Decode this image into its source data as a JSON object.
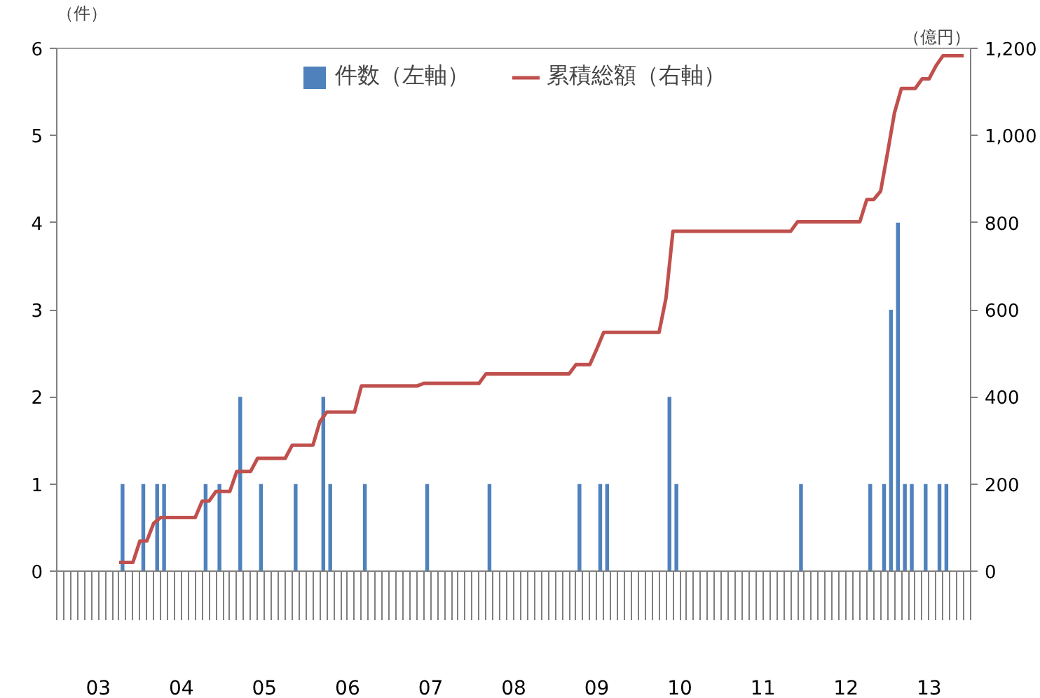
{
  "chart_data": {
    "type": "bar",
    "ylabel": "（件）",
    "y2label": "（億円）",
    "x": [
      "2003-01",
      "2003-02",
      "2003-03",
      "2003-04",
      "2003-05",
      "2003-06",
      "2003-07",
      "2003-08",
      "2003-09",
      "2003-10",
      "2003-11",
      "2003-12",
      "2004-01",
      "2004-02",
      "2004-03",
      "2004-04",
      "2004-05",
      "2004-06",
      "2004-07",
      "2004-08",
      "2004-09",
      "2004-10",
      "2004-11",
      "2004-12",
      "2005-01",
      "2005-02",
      "2005-03",
      "2005-04",
      "2005-05",
      "2005-06",
      "2005-07",
      "2005-08",
      "2005-09",
      "2005-10",
      "2005-11",
      "2005-12",
      "2006-01",
      "2006-02",
      "2006-03",
      "2006-04",
      "2006-05",
      "2006-06",
      "2006-07",
      "2006-08",
      "2006-09",
      "2006-10",
      "2006-11",
      "2006-12",
      "2007-01",
      "2007-02",
      "2007-03",
      "2007-04",
      "2007-05",
      "2007-06",
      "2007-07",
      "2007-08",
      "2007-09",
      "2007-10",
      "2007-11",
      "2007-12",
      "2008-01",
      "2008-02",
      "2008-03",
      "2008-04",
      "2008-05",
      "2008-06",
      "2008-07",
      "2008-08",
      "2008-09",
      "2008-10",
      "2008-11",
      "2008-12",
      "2009-01",
      "2009-02",
      "2009-03",
      "2009-04",
      "2009-05",
      "2009-06",
      "2009-07",
      "2009-08",
      "2009-09",
      "2009-10",
      "2009-11",
      "2009-12",
      "2010-01",
      "2010-02",
      "2010-03",
      "2010-04",
      "2010-05",
      "2010-06",
      "2010-07",
      "2010-08",
      "2010-09",
      "2010-10",
      "2010-11",
      "2010-12",
      "2011-01",
      "2011-02",
      "2011-03",
      "2011-04",
      "2011-05",
      "2011-06",
      "2011-07",
      "2011-08",
      "2011-09",
      "2011-10",
      "2011-11",
      "2011-12",
      "2012-01",
      "2012-02",
      "2012-03",
      "2012-04",
      "2012-05",
      "2012-06",
      "2012-07",
      "2012-08",
      "2012-09",
      "2012-10",
      "2012-11",
      "2012-12",
      "2013-01",
      "2013-02",
      "2013-03",
      "2013-04",
      "2013-05",
      "2013-06",
      "2013-07",
      "2013-08",
      "2013-09",
      "2013-10",
      "2013-11",
      "2013-12"
    ],
    "series": [
      {
        "name": "件数（左軸）",
        "color": "#4f81bd",
        "values": [
          0,
          0,
          0,
          0,
          0,
          0,
          0,
          0,
          0,
          1,
          0,
          0,
          1,
          0,
          1,
          1,
          0,
          0,
          0,
          0,
          0,
          1,
          0,
          1,
          0,
          0,
          2,
          0,
          0,
          1,
          0,
          0,
          0,
          0,
          1,
          0,
          0,
          0,
          2,
          1,
          0,
          0,
          0,
          0,
          1,
          0,
          0,
          0,
          0,
          0,
          0,
          0,
          0,
          1,
          0,
          0,
          0,
          0,
          0,
          0,
          0,
          0,
          1,
          0,
          0,
          0,
          0,
          0,
          0,
          0,
          0,
          0,
          0,
          0,
          0,
          1,
          0,
          0,
          1,
          1,
          0,
          0,
          0,
          0,
          0,
          0,
          0,
          0,
          2,
          1,
          0,
          0,
          0,
          0,
          0,
          0,
          0,
          0,
          0,
          0,
          0,
          0,
          0,
          0,
          0,
          0,
          0,
          1,
          0,
          0,
          0,
          0,
          0,
          0,
          0,
          0,
          0,
          1,
          0,
          1,
          3,
          4,
          1,
          1,
          0,
          1,
          0,
          1,
          1,
          0,
          0,
          0
        ]
      },
      {
        "name": "累積総額（右軸）",
        "type": "line",
        "axis": "y2",
        "color": "#c0504d",
        "values": [
          null,
          null,
          null,
          null,
          null,
          null,
          null,
          null,
          null,
          20,
          20,
          20,
          69,
          69,
          110,
          123,
          123,
          123,
          123,
          123,
          123,
          161,
          161,
          183,
          183,
          183,
          229,
          229,
          229,
          259,
          259,
          259,
          259,
          259,
          289,
          289,
          289,
          289,
          343,
          365,
          365,
          365,
          365,
          365,
          425,
          425,
          425,
          425,
          425,
          425,
          425,
          425,
          425,
          431,
          431,
          431,
          431,
          431,
          431,
          431,
          431,
          431,
          453,
          453,
          453,
          453,
          453,
          453,
          453,
          453,
          453,
          453,
          453,
          453,
          453,
          474,
          474,
          474,
          510,
          548,
          548,
          548,
          548,
          548,
          548,
          548,
          548,
          548,
          627,
          780,
          780,
          780,
          780,
          780,
          780,
          780,
          780,
          780,
          780,
          780,
          780,
          780,
          780,
          780,
          780,
          780,
          780,
          802,
          802,
          802,
          802,
          802,
          802,
          802,
          802,
          802,
          802,
          853,
          853,
          872,
          960,
          1052,
          1108,
          1108,
          1108,
          1130,
          1130,
          1160,
          1183,
          1183,
          1183,
          1183
        ]
      }
    ],
    "xlim": [
      "2003-01",
      "2014-01"
    ],
    "xticks": [
      {
        "value": "2003-07",
        "label": "03"
      },
      {
        "value": "2004-07",
        "label": "04"
      },
      {
        "value": "2005-07",
        "label": "05"
      },
      {
        "value": "2006-07",
        "label": "06"
      },
      {
        "value": "2007-07",
        "label": "07"
      },
      {
        "value": "2008-07",
        "label": "08"
      },
      {
        "value": "2009-07",
        "label": "09"
      },
      {
        "value": "2010-07",
        "label": "10"
      },
      {
        "value": "2011-07",
        "label": "11"
      },
      {
        "value": "2012-07",
        "label": "12"
      },
      {
        "value": "2013-07",
        "label": "13"
      }
    ],
    "ylim": [
      0,
      6
    ],
    "yticks": [
      0,
      1,
      2,
      3,
      4,
      5,
      6
    ],
    "y2lim": [
      0,
      1200
    ],
    "y2ticks": [
      0,
      200,
      400,
      600,
      {
        "value": 800,
        "label": "800"
      },
      {
        "value": 1000,
        "label": "1,000"
      },
      {
        "value": 1200,
        "label": "1,200"
      }
    ],
    "grid": false,
    "legend": "top"
  }
}
